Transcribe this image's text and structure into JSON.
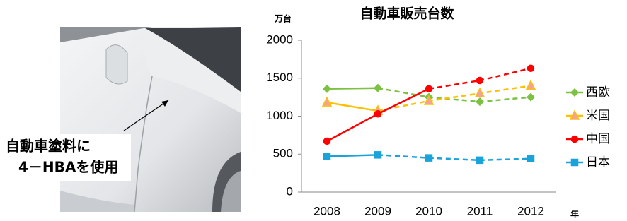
{
  "photo_caption": [
    "自動車塗料に",
    "4－HBAを使用"
  ],
  "chart_data": {
    "type": "line",
    "title": "自動車販売台数",
    "y_label": "万台",
    "x_label": "年",
    "categories": [
      "2008",
      "2009",
      "2010",
      "2011",
      "2012"
    ],
    "ylim": [
      0,
      2000
    ],
    "yticks": [
      0,
      500,
      1000,
      1500,
      2000
    ],
    "grid": false,
    "legend": "right",
    "series": [
      {
        "name": "西欧",
        "color": "#7dc142",
        "marker": "diamond",
        "marker_fill": "#7dc142",
        "dash_from": 1,
        "values": [
          1360,
          1370,
          1250,
          1190,
          1250
        ]
      },
      {
        "name": "米国",
        "color": "#ffc000",
        "marker": "triangle",
        "marker_fill": "#f4a0a0",
        "dash_from": 1,
        "values": [
          1180,
          1070,
          1200,
          1300,
          1400
        ]
      },
      {
        "name": "中国",
        "color": "#ff0000",
        "marker": "circle",
        "marker_fill": "#ff0000",
        "dash_from": 2,
        "values": [
          670,
          1030,
          1360,
          1470,
          1630
        ]
      },
      {
        "name": "日本",
        "color": "#1aa3d9",
        "marker": "square",
        "marker_fill": "#1aa3d9",
        "dash_from": 1,
        "values": [
          470,
          490,
          450,
          420,
          440
        ]
      }
    ]
  }
}
